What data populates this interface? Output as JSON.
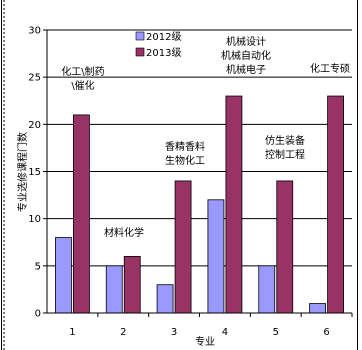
{
  "chart_data": {
    "type": "bar",
    "categories": [
      "1",
      "2",
      "3",
      "4",
      "5",
      "6"
    ],
    "series": [
      {
        "name": "2012级",
        "values": [
          8,
          5,
          3,
          12,
          5,
          1
        ],
        "color": "#9999ff"
      },
      {
        "name": "2013级",
        "values": [
          21,
          6,
          14,
          23,
          14,
          23
        ],
        "color": "#993366"
      }
    ],
    "xlabel": "专业",
    "ylabel": "专业选修课程门数",
    "ylim": [
      0,
      30
    ],
    "yticks": [
      0,
      5,
      10,
      15,
      20,
      25,
      30
    ],
    "grid": true,
    "legend_position": "top-center",
    "annotations": [
      {
        "category_index": 0,
        "lines": [
          "化工\\制药",
          "\\催化"
        ]
      },
      {
        "category_index": 1,
        "lines": [
          "材料化学"
        ]
      },
      {
        "category_index": 2,
        "lines": [
          "香精香料",
          "生物化工"
        ]
      },
      {
        "category_index": 3,
        "lines": [
          "机械设计",
          "机械自动化",
          "机械电子"
        ]
      },
      {
        "category_index": 4,
        "lines": [
          "仿生装备",
          "控制工程"
        ]
      },
      {
        "category_index": 5,
        "lines": [
          "化工专硕"
        ]
      }
    ]
  }
}
